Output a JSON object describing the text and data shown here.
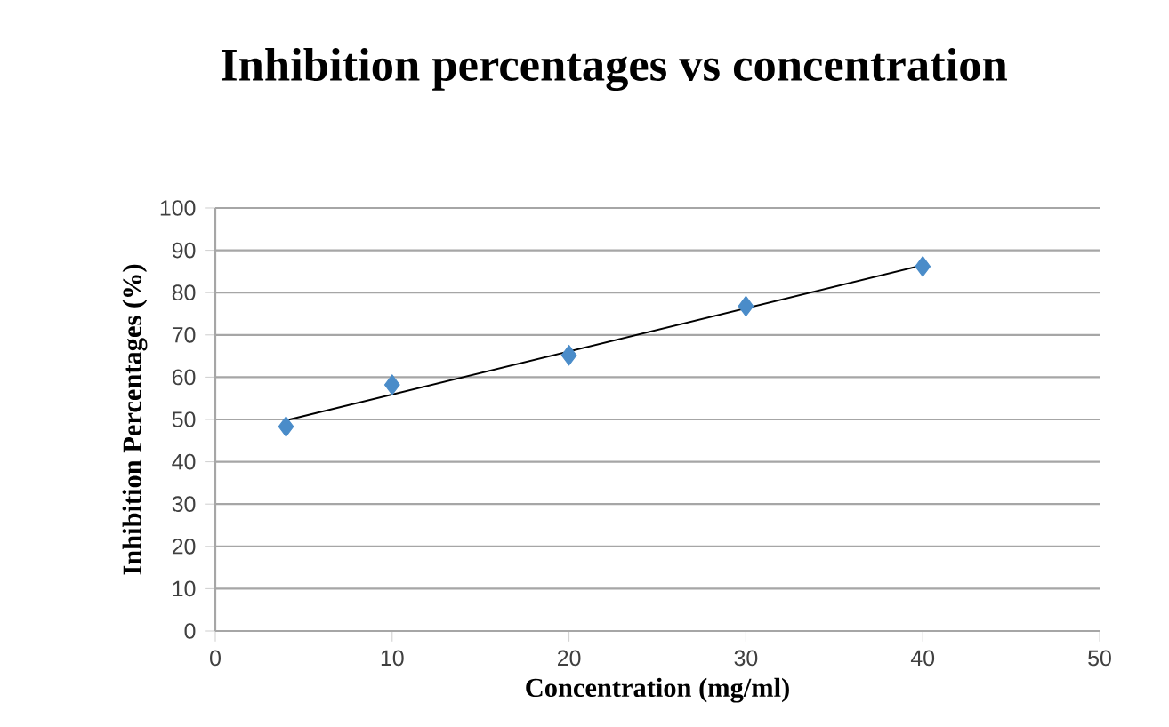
{
  "chart_data": {
    "type": "scatter",
    "title": "Inhibition  percentages vs concentration",
    "xlabel": "Concentration  (mg/ml)",
    "ylabel": "Inhibition Percentages (%)",
    "series": [
      {
        "color": "#4a8cc9",
        "marker": "diamond",
        "x": [
          4,
          10,
          20,
          30,
          40
        ],
        "values": [
          48.3,
          58.2,
          65.2,
          76.8,
          86.2
        ]
      },
      {
        "type": "line",
        "color": "#000000",
        "marker": "none",
        "x": [
          4,
          40
        ],
        "values": [
          49.8,
          86.5
        ]
      }
    ],
    "xlim": [
      0,
      50
    ],
    "xticks": [
      0,
      10,
      20,
      30,
      40,
      50
    ],
    "ylim": [
      0,
      100
    ],
    "yticks": [
      0,
      10,
      20,
      30,
      40,
      50,
      60,
      70,
      80,
      90,
      100
    ],
    "grid": "y"
  }
}
